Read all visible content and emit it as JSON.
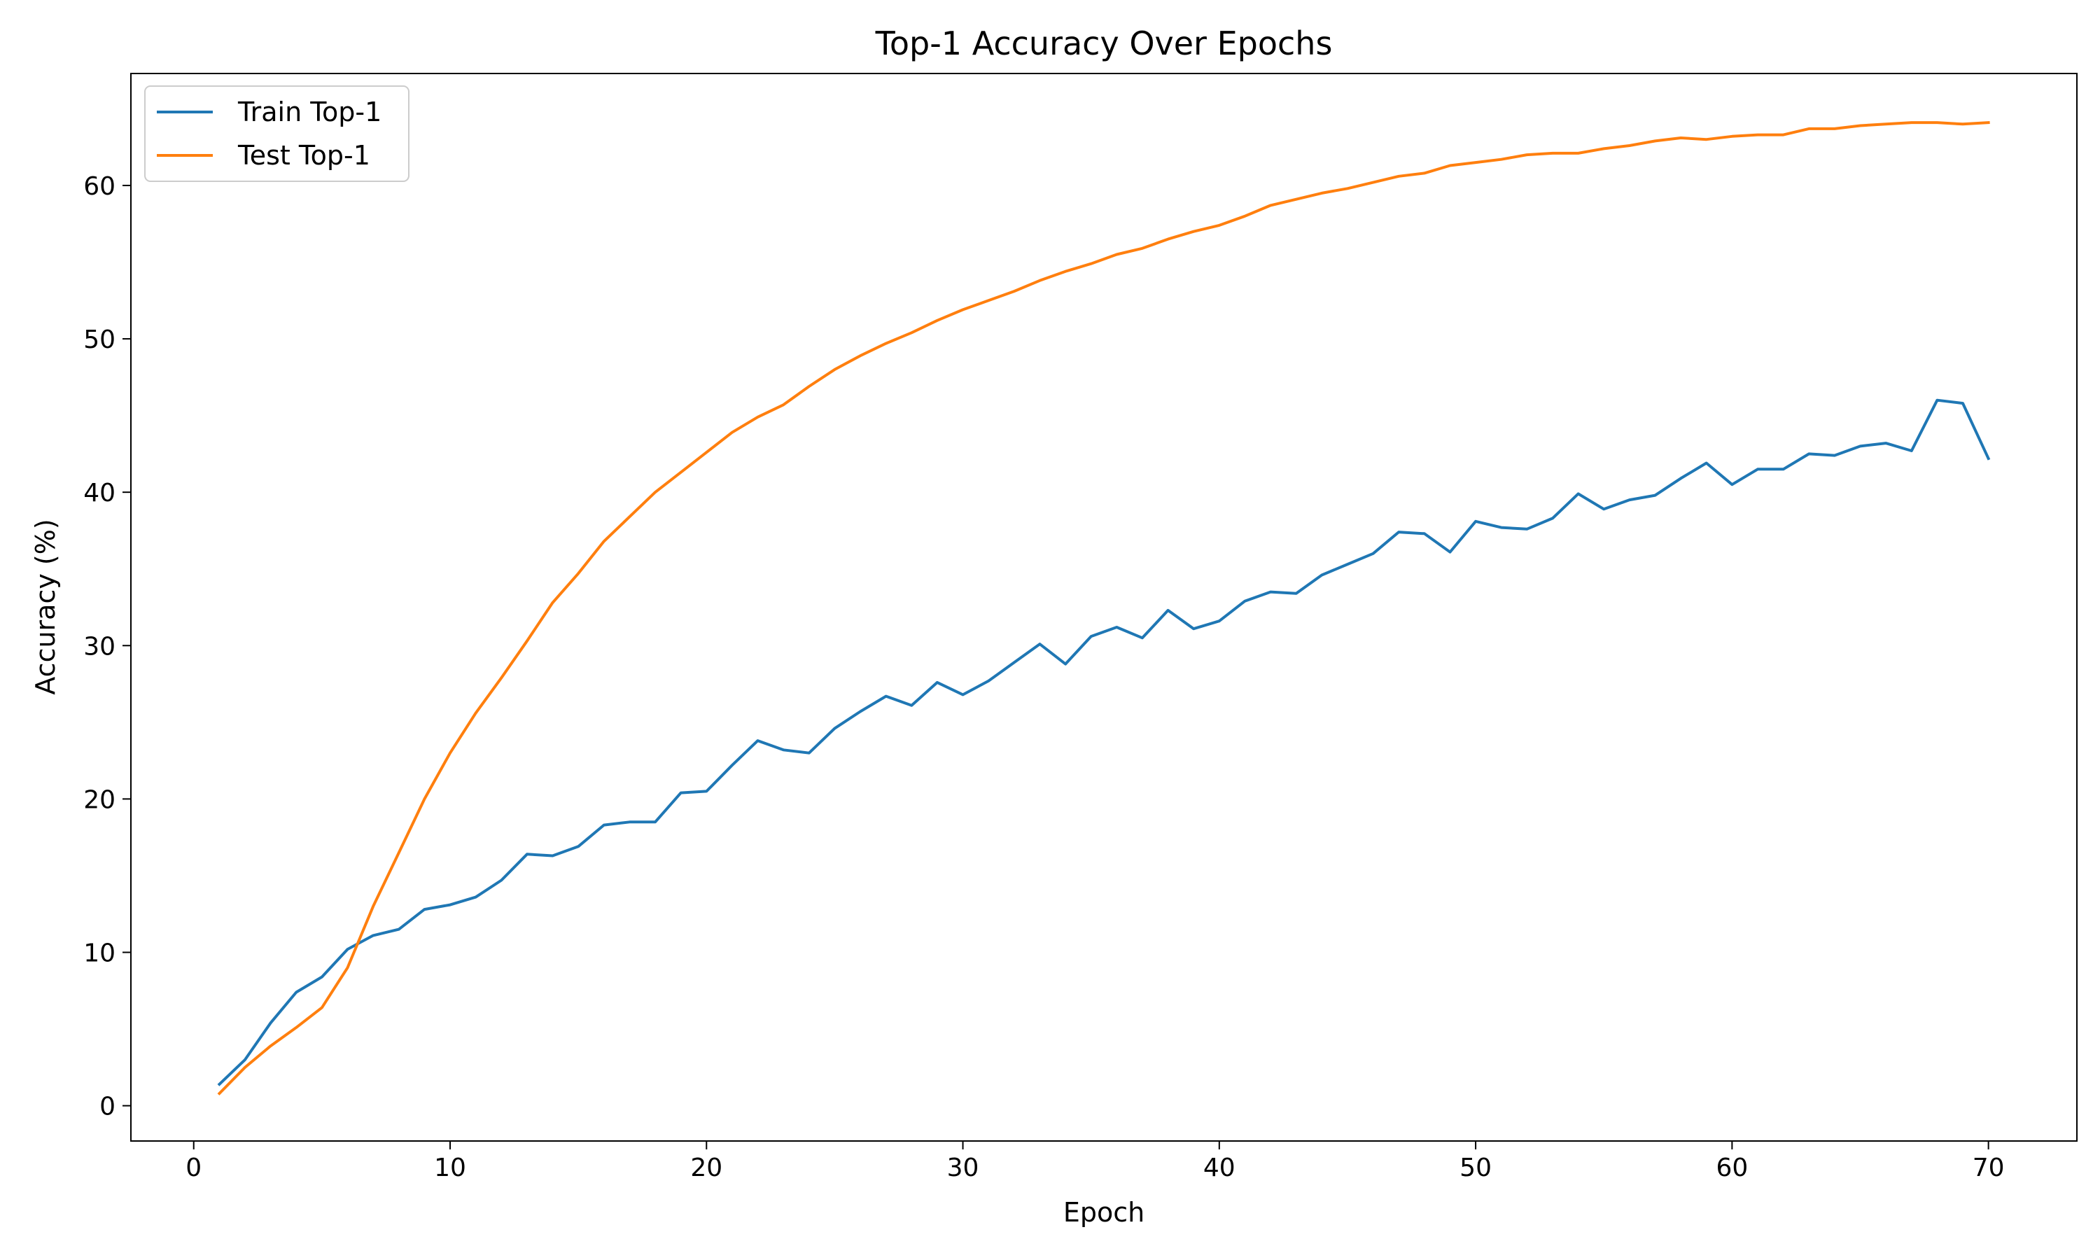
{
  "chart_data": {
    "type": "line",
    "title": "Top-1 Accuracy Over Epochs",
    "xlabel": "Epoch",
    "ylabel": "Accuracy (%)",
    "xlim": [
      -2.45,
      73.45
    ],
    "ylim": [
      -2.3,
      67.3
    ],
    "xticks": [
      0,
      10,
      20,
      30,
      40,
      50,
      60,
      70
    ],
    "yticks": [
      0,
      10,
      20,
      30,
      40,
      50,
      60
    ],
    "grid": false,
    "legend": {
      "position": "top-left"
    },
    "x": [
      1,
      2,
      3,
      4,
      5,
      6,
      7,
      8,
      9,
      10,
      11,
      12,
      13,
      14,
      15,
      16,
      17,
      18,
      19,
      20,
      21,
      22,
      23,
      24,
      25,
      26,
      27,
      28,
      29,
      30,
      31,
      32,
      33,
      34,
      35,
      36,
      37,
      38,
      39,
      40,
      41,
      42,
      43,
      44,
      45,
      46,
      47,
      48,
      49,
      50,
      51,
      52,
      53,
      54,
      55,
      56,
      57,
      58,
      59,
      60,
      61,
      62,
      63,
      64,
      65,
      66,
      67,
      68,
      69,
      70
    ],
    "series": [
      {
        "name": "Train Top-1",
        "color": "#1f77b4",
        "values": [
          1.4,
          3.0,
          5.4,
          7.4,
          8.4,
          10.2,
          11.1,
          11.5,
          12.8,
          13.1,
          13.6,
          14.7,
          16.4,
          16.3,
          16.9,
          18.3,
          18.5,
          18.5,
          20.4,
          20.5,
          22.2,
          23.8,
          23.2,
          23.0,
          24.6,
          25.7,
          26.7,
          26.1,
          27.6,
          26.8,
          27.7,
          28.9,
          30.1,
          28.8,
          30.6,
          31.2,
          30.5,
          32.3,
          31.1,
          31.6,
          32.9,
          33.5,
          33.4,
          34.6,
          35.3,
          36.0,
          37.4,
          37.3,
          36.1,
          38.1,
          37.7,
          37.6,
          38.3,
          39.9,
          38.9,
          39.5,
          39.8,
          40.9,
          41.9,
          40.5,
          41.5,
          41.5,
          42.5,
          42.4,
          43.0,
          43.2,
          42.7,
          46.0,
          45.8,
          42.2
        ]
      },
      {
        "name": "Test Top-1",
        "color": "#ff7f0e",
        "values": [
          0.8,
          2.5,
          3.9,
          5.1,
          6.4,
          9.0,
          13.0,
          16.5,
          20.0,
          23.0,
          25.6,
          27.9,
          30.3,
          32.8,
          34.7,
          36.8,
          38.4,
          40.0,
          41.3,
          42.6,
          43.9,
          44.9,
          45.7,
          46.9,
          48.0,
          48.9,
          49.7,
          50.4,
          51.2,
          51.9,
          52.5,
          53.1,
          53.8,
          54.4,
          54.9,
          55.5,
          55.9,
          56.5,
          57.0,
          57.4,
          58.0,
          58.7,
          59.1,
          59.5,
          59.8,
          60.2,
          60.6,
          60.8,
          61.3,
          61.5,
          61.7,
          62.0,
          62.1,
          62.1,
          62.4,
          62.6,
          62.9,
          63.1,
          63.0,
          63.2,
          63.3,
          63.3,
          63.7,
          63.7,
          63.9,
          64.0,
          64.1,
          64.1,
          64.0,
          64.1
        ]
      }
    ]
  }
}
